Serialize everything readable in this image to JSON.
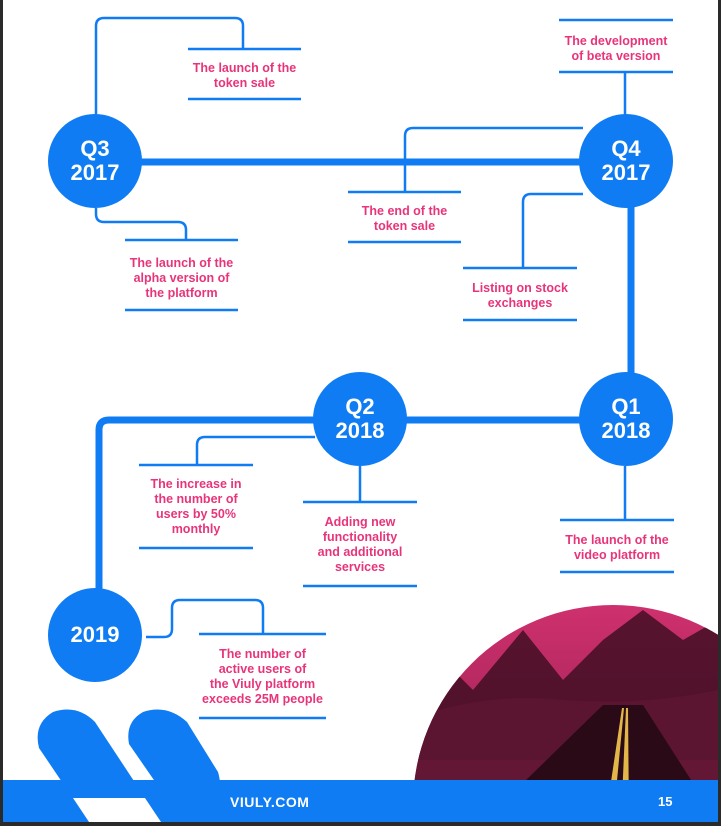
{
  "milestones": [
    {
      "id": "q3-2017",
      "period": "Q3",
      "year": "2017"
    },
    {
      "id": "q4-2017",
      "period": "Q4",
      "year": "2017"
    },
    {
      "id": "q1-2018",
      "period": "Q1",
      "year": "2018"
    },
    {
      "id": "q2-2018",
      "period": "Q2",
      "year": "2018"
    },
    {
      "id": "y-2019",
      "period": "",
      "year": "2019"
    }
  ],
  "events": {
    "token_sale_launch": "The launch of the\ntoken sale",
    "alpha_launch": "The launch of the\nalpha version of\nthe platform",
    "token_sale_end": "The end of the\ntoken sale",
    "beta_development": "The development\nof beta version",
    "stock_listing": "Listing on stock\nexchanges",
    "video_platform_launch": "The launch of the\nvideo platform",
    "user_increase": "The increase in\nthe number of\nusers by 50%\nmonthly",
    "new_functionality": "Adding new\nfunctionality\nand additional\nservices",
    "active_users": "The number of\nactive users of\nthe Viuly platform\nexceeds 25M people"
  },
  "footer": {
    "brand": "VIULY.COM",
    "page_number": "15"
  },
  "colors": {
    "accent_blue": "#0f7cf4",
    "label_pink": "#e8347a",
    "photo_magenta": "#b0245e"
  }
}
